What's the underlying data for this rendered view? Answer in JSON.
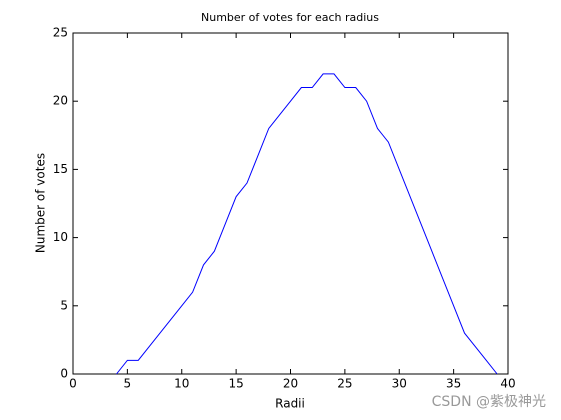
{
  "chart_data": {
    "type": "line",
    "title": "Number of votes for each radius",
    "x_label": "Radii",
    "y_label": "Number of votes",
    "x": [
      4,
      5,
      6,
      7,
      8,
      9,
      10,
      11,
      12,
      13,
      14,
      15,
      16,
      17,
      18,
      19,
      20,
      21,
      22,
      23,
      24,
      25,
      26,
      27,
      28,
      29,
      30,
      31,
      32,
      33,
      34,
      35,
      36,
      37,
      38,
      39
    ],
    "series": [
      {
        "name": "votes",
        "color": "#0000ff",
        "values": [
          0,
          1,
          1,
          2,
          3,
          4,
          5,
          6,
          8,
          9,
          11,
          13,
          14,
          16,
          18,
          19,
          20,
          21,
          21,
          22,
          22,
          21,
          21,
          20,
          18,
          17,
          15,
          13,
          11,
          9,
          7,
          5,
          3,
          2,
          1,
          0
        ]
      }
    ],
    "xlim": [
      0,
      40
    ],
    "xticks": [
      0,
      5,
      10,
      15,
      20,
      25,
      30,
      35,
      40
    ],
    "ylim": [
      0,
      25
    ],
    "yticks": [
      0,
      5,
      10,
      15,
      20,
      25
    ],
    "grid": false,
    "watermark": "CSDN @紫极神光"
  }
}
